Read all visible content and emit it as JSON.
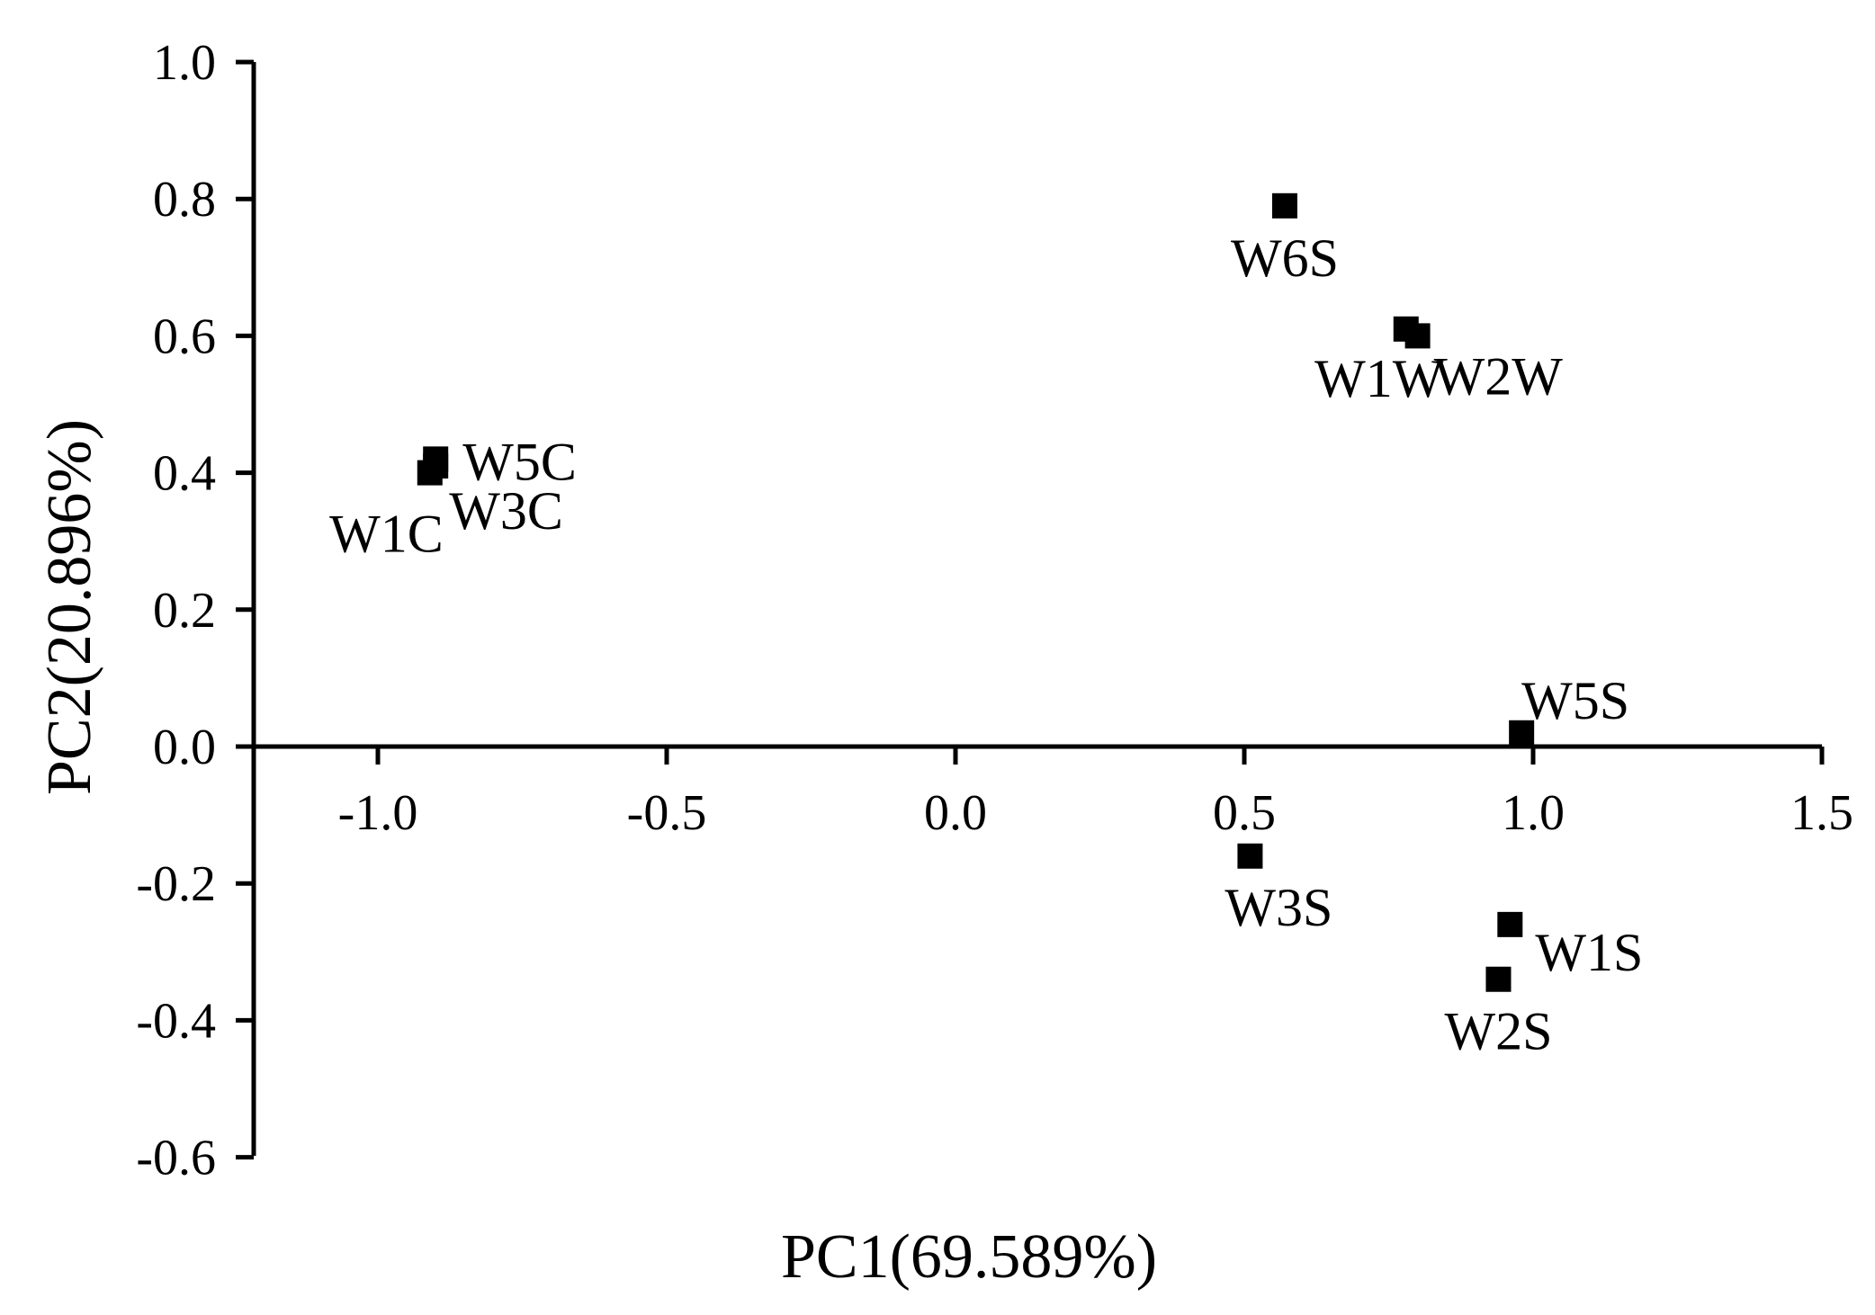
{
  "chart_data": {
    "type": "scatter",
    "xlabel": "PC1(69.589%)",
    "ylabel": "PC2(20.896%)",
    "xlim": [
      -1.2,
      1.5
    ],
    "ylim": [
      -0.6,
      1.0
    ],
    "xticks": [
      -1.0,
      -0.5,
      0.0,
      0.5,
      1.0,
      1.5
    ],
    "xtick_labels": [
      "-1.0",
      "-0.5",
      "0.0",
      "0.5",
      "1.0",
      "1.5"
    ],
    "yticks": [
      1.0,
      0.8,
      0.6,
      0.4,
      0.2,
      0.0,
      -0.2,
      -0.4,
      -0.6
    ],
    "ytick_labels": [
      "1.0",
      "0.8",
      "0.6",
      "0.4",
      "0.2",
      "0.0",
      "-0.2",
      "-0.4",
      "-0.6"
    ],
    "grid": false,
    "legend": "none",
    "marker": "square",
    "marker_color": "#000000",
    "points": [
      {
        "label": "W6S",
        "x": 0.57,
        "y": 0.79
      },
      {
        "label": "W1W",
        "x": 0.78,
        "y": 0.61
      },
      {
        "label": "W2W",
        "x": 0.8,
        "y": 0.6
      },
      {
        "label": "W5C",
        "x": -0.9,
        "y": 0.42
      },
      {
        "label": "W1C",
        "x": -0.91,
        "y": 0.4
      },
      {
        "label": "W3C",
        "x": -0.9,
        "y": 0.41
      },
      {
        "label": "W5S",
        "x": 0.98,
        "y": 0.02
      },
      {
        "label": "W3S",
        "x": 0.51,
        "y": -0.16
      },
      {
        "label": "W1S",
        "x": 0.96,
        "y": -0.26
      },
      {
        "label": "W2S",
        "x": 0.94,
        "y": -0.34
      }
    ]
  }
}
